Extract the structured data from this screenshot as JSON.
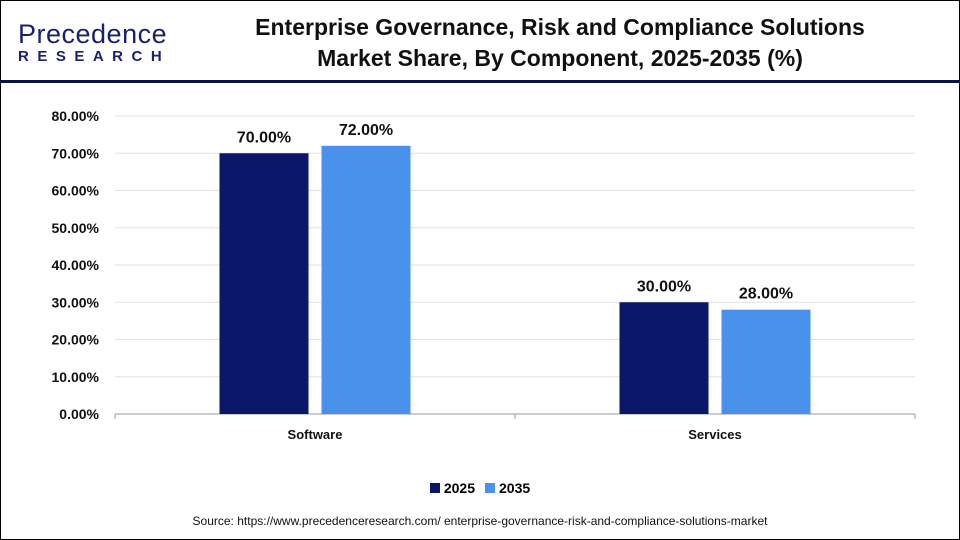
{
  "logo": {
    "line1": "Precedence",
    "line2": "RESEARCH"
  },
  "title_line1": "Enterprise Governance, Risk and Compliance Solutions",
  "title_line2": "Market Share, By Component, 2025-2035 (%)",
  "source": "Source: https://www.precedenceresearch.com/ enterprise-governance-risk-and-compliance-solutions-market",
  "chart_data": {
    "type": "bar",
    "title": "Enterprise Governance, Risk and Compliance Solutions Market Share, By Component, 2025-2035 (%)",
    "categories": [
      "Software",
      "Services"
    ],
    "series": [
      {
        "name": "2025",
        "values": [
          70.0,
          30.0
        ],
        "labels": [
          "70.00%",
          "30.00%"
        ],
        "color": "#0b1869"
      },
      {
        "name": "2035",
        "values": [
          72.0,
          28.0
        ],
        "labels": [
          "72.00%",
          "28.00%"
        ],
        "color": "#4a91eb"
      }
    ],
    "ylim": [
      0,
      80
    ],
    "yticks": [
      "0.00%",
      "10.00%",
      "20.00%",
      "30.00%",
      "40.00%",
      "50.00%",
      "60.00%",
      "70.00%",
      "80.00%"
    ],
    "xlabel": "",
    "ylabel": "",
    "grid": true,
    "legend": "bottom"
  }
}
